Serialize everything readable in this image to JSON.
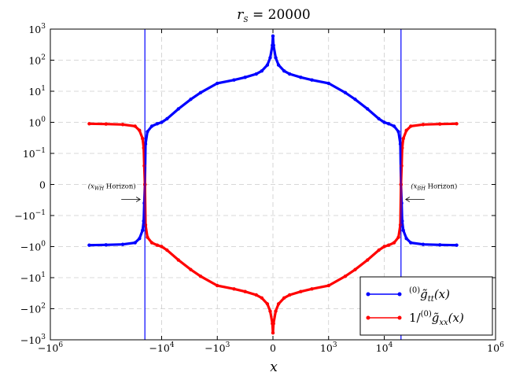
{
  "chart_data": {
    "type": "line",
    "title": "r_S = 20000",
    "title_parts": {
      "r": "r",
      "sub": "S",
      "rest": " = 20000"
    },
    "xlabel": "x",
    "ylabel": "",
    "x_scale": "symlog",
    "y_scale": "symlog",
    "xlim": [
      -1000000,
      1000000
    ],
    "ylim": [
      -1000,
      1000
    ],
    "grid": true,
    "legend_position": "bottom-right",
    "colors": {
      "blue": "#0000ff",
      "red": "#ff0000"
    },
    "x_ticks": [
      {
        "value": -1000000,
        "base": "−10",
        "exp": "6"
      },
      {
        "value": -10000,
        "base": "−10",
        "exp": "4"
      },
      {
        "value": -1000,
        "base": "−10",
        "exp": "3"
      },
      {
        "value": 0,
        "base": "0",
        "exp": ""
      },
      {
        "value": 1000,
        "base": "10",
        "exp": "3"
      },
      {
        "value": 10000,
        "base": "10",
        "exp": "4"
      },
      {
        "value": 1000000,
        "base": "10",
        "exp": "6"
      }
    ],
    "y_ticks": [
      {
        "value": 1000,
        "base": "10",
        "exp": "3"
      },
      {
        "value": 100,
        "base": "10",
        "exp": "2"
      },
      {
        "value": 10,
        "base": "10",
        "exp": "1"
      },
      {
        "value": 1,
        "base": "10",
        "exp": "0"
      },
      {
        "value": 0.1,
        "base": "10",
        "exp": "−1"
      },
      {
        "value": 0,
        "base": "0",
        "exp": ""
      },
      {
        "value": -0.1,
        "base": "−10",
        "exp": "−1"
      },
      {
        "value": -1,
        "base": "−10",
        "exp": "0"
      },
      {
        "value": -10,
        "base": "−10",
        "exp": "1"
      },
      {
        "value": -100,
        "base": "−10",
        "exp": "2"
      },
      {
        "value": -1000,
        "base": "−10",
        "exp": "3"
      }
    ],
    "horizons": [
      {
        "x": -20000,
        "label_main": "(x",
        "label_sub": "WH",
        "label_rest": " Horizon)",
        "arrow": "right"
      },
      {
        "x": 20000,
        "label_main": "(x",
        "label_sub": "BH",
        "label_rest": " Horizon)",
        "arrow": "left"
      }
    ],
    "series": [
      {
        "name": "(0)g̃tt(x)",
        "color": "#0000ff",
        "x": [
          -200000,
          -100000,
          -50000,
          -30000,
          -25000,
          -22000,
          -21000,
          -20500,
          -20000,
          -19500,
          -18000,
          -15000,
          -12000,
          -10000,
          -8000,
          -5000,
          -3000,
          -2000,
          -1000,
          -700,
          -500,
          -300,
          -200,
          -100,
          -50,
          -10,
          0,
          10,
          50,
          100,
          200,
          300,
          500,
          700,
          1000,
          2000,
          3000,
          5000,
          8000,
          10000,
          12000,
          15000,
          18000,
          19500,
          20000,
          20500,
          21000,
          22000,
          25000,
          30000,
          50000,
          100000,
          200000
        ],
        "y_upper": [
          null,
          null,
          null,
          null,
          null,
          null,
          null,
          null,
          0,
          0.2,
          0.5,
          0.75,
          0.9,
          1.0,
          1.3,
          2.7,
          5.5,
          9,
          18,
          23,
          28,
          36,
          45,
          70,
          120,
          300,
          600,
          300,
          120,
          70,
          45,
          36,
          28,
          23,
          18,
          9,
          5.5,
          2.7,
          1.3,
          1.0,
          0.9,
          0.75,
          0.5,
          0.2,
          0,
          null,
          null,
          null,
          null,
          null,
          null,
          null,
          null
        ],
        "y_side": [
          -0.9,
          -0.88,
          -0.85,
          -0.75,
          -0.55,
          -0.3,
          -0.15,
          -0.06,
          0,
          null,
          null,
          null,
          null,
          null,
          null,
          null,
          null,
          null,
          null,
          null,
          null,
          null,
          null,
          null,
          null,
          null,
          null,
          null,
          null,
          null,
          null,
          null,
          null,
          null,
          null,
          null,
          null,
          null,
          null,
          null,
          null,
          null,
          null,
          null,
          0,
          -0.06,
          -0.15,
          -0.3,
          -0.55,
          -0.75,
          -0.85,
          -0.88,
          -0.9
        ]
      },
      {
        "name": "1/(0)g̃xx(x)",
        "color": "#ff0000",
        "x": [
          -200000,
          -100000,
          -50000,
          -30000,
          -25000,
          -22000,
          -21000,
          -20500,
          -20000,
          -19500,
          -18000,
          -15000,
          -12000,
          -10000,
          -8000,
          -5000,
          -3000,
          -2000,
          -1000,
          -700,
          -500,
          -300,
          -200,
          -100,
          -50,
          -10,
          0,
          10,
          50,
          100,
          200,
          300,
          500,
          700,
          1000,
          2000,
          3000,
          5000,
          8000,
          10000,
          12000,
          15000,
          18000,
          19500,
          20000,
          20500,
          21000,
          22000,
          25000,
          30000,
          50000,
          100000,
          200000
        ],
        "y_upper": [
          0.9,
          0.88,
          0.85,
          0.75,
          0.55,
          0.3,
          0.15,
          0.06,
          0,
          null,
          null,
          null,
          null,
          null,
          null,
          null,
          null,
          null,
          null,
          null,
          null,
          null,
          null,
          null,
          null,
          null,
          null,
          null,
          null,
          null,
          null,
          null,
          null,
          null,
          null,
          null,
          null,
          null,
          null,
          null,
          null,
          null,
          null,
          null,
          0,
          0.06,
          0.15,
          0.3,
          0.55,
          0.75,
          0.85,
          0.88,
          0.9
        ],
        "y_side": [
          null,
          null,
          null,
          null,
          null,
          null,
          null,
          null,
          0,
          -0.2,
          -0.5,
          -0.75,
          -0.9,
          -1.0,
          -1.3,
          -2.7,
          -5.5,
          -9,
          -18,
          -23,
          -28,
          -36,
          -45,
          -70,
          -120,
          -300,
          -600,
          -300,
          -120,
          -70,
          -45,
          -36,
          -28,
          -23,
          -18,
          -9,
          -5.5,
          -2.7,
          -1.3,
          -1.0,
          -0.9,
          -0.75,
          -0.5,
          -0.2,
          0,
          null,
          null,
          null,
          null,
          null,
          null,
          null,
          null
        ]
      }
    ],
    "legend": [
      {
        "pre": "",
        "sup": "(0)",
        "main": "g̃",
        "sub": "tt",
        "post": "(x)",
        "color": "#0000ff"
      },
      {
        "pre": "1/",
        "sup": "(0)",
        "main": "g̃",
        "sub": "xx",
        "post": "(x)",
        "color": "#ff0000"
      }
    ]
  }
}
